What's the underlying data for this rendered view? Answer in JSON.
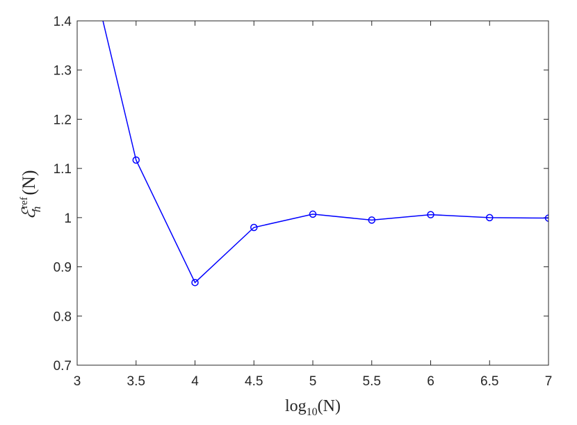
{
  "chart_data": {
    "type": "line",
    "title": "",
    "xlabel": {
      "base": "log",
      "subscript": "10",
      "rest": "(N)"
    },
    "ylabel": {
      "base": "ℰ",
      "superscript": "ref",
      "subscript": "h",
      "rest": "(N)"
    },
    "xlim": [
      3,
      7
    ],
    "ylim": [
      0.7,
      1.4
    ],
    "xticks": [
      3,
      3.5,
      4,
      4.5,
      5,
      5.5,
      6,
      6.5,
      7
    ],
    "xtick_labels": [
      "3",
      "3.5",
      "4",
      "4.5",
      "5",
      "5.5",
      "6",
      "6.5",
      "7"
    ],
    "yticks": [
      0.7,
      0.8,
      0.9,
      1.0,
      1.1,
      1.2,
      1.3,
      1.4
    ],
    "ytick_labels": [
      "0.7",
      "0.8",
      "0.9",
      "1",
      "1.1",
      "1.2",
      "1.3",
      "1.4"
    ],
    "grid": false,
    "series": [
      {
        "color": "#0000ff",
        "marker": "circle",
        "x": [
          3,
          3.5,
          4,
          4.5,
          5,
          5.5,
          6,
          6.5,
          7
        ],
        "y": [
          1.62,
          1.117,
          0.868,
          0.98,
          1.007,
          0.995,
          1.006,
          1.0,
          0.999
        ]
      }
    ]
  }
}
